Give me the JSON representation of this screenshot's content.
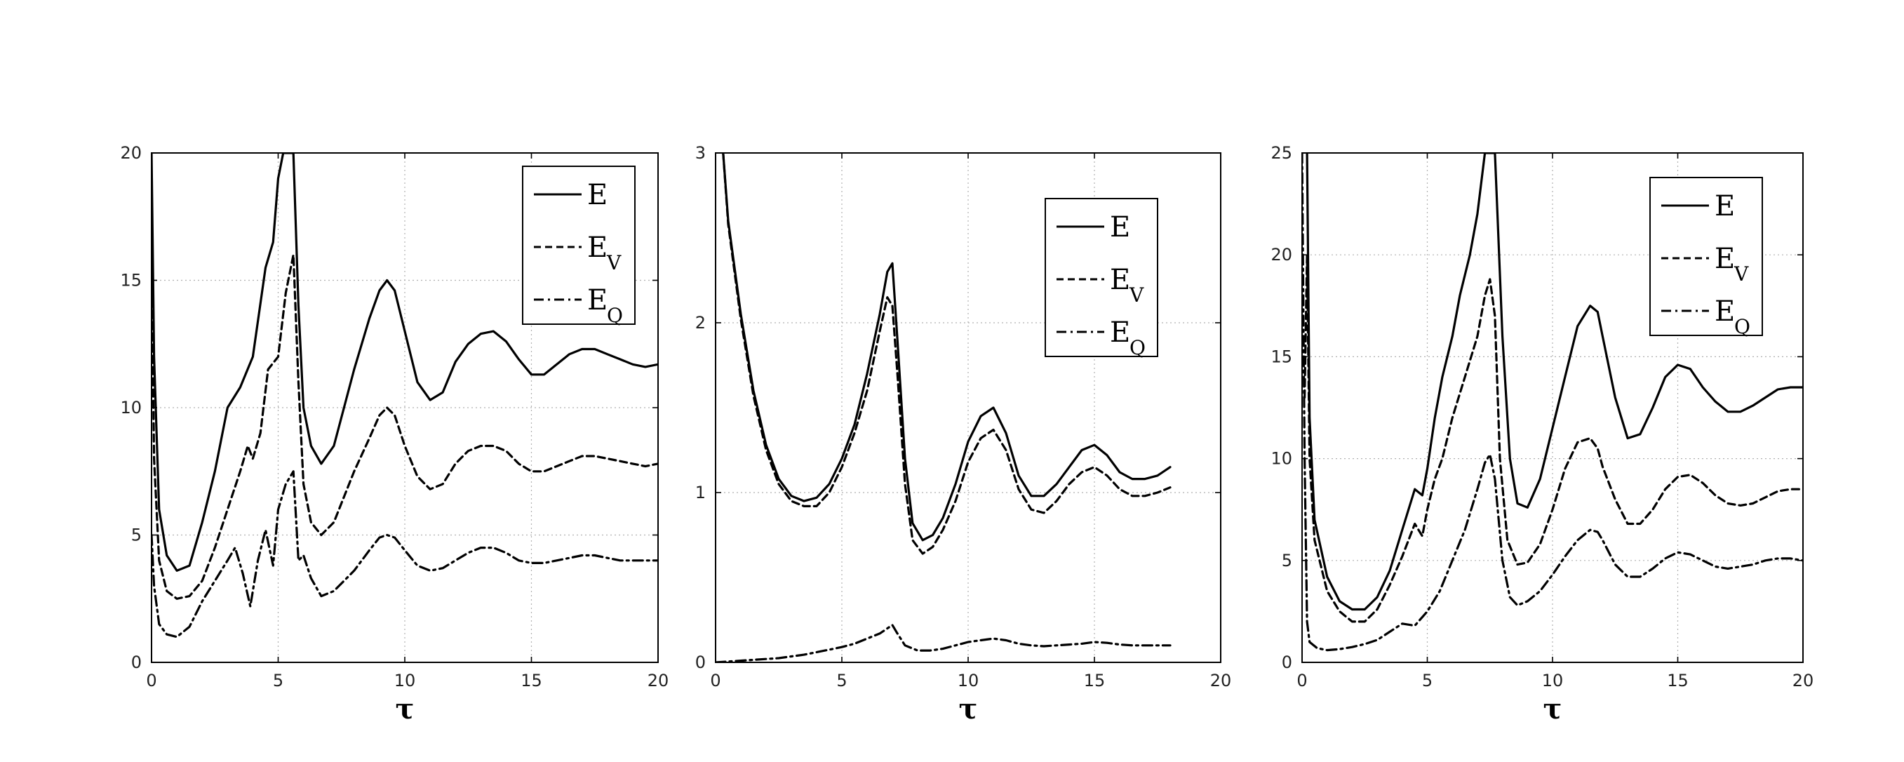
{
  "chart_data": [
    {
      "type": "line",
      "xlabel": "τ",
      "ylabel": "",
      "xlim": [
        0,
        20
      ],
      "ylim": [
        0,
        20
      ],
      "xticks": [
        "0",
        "5",
        "10",
        "15",
        "20"
      ],
      "yticks": [
        "0",
        "5",
        "10",
        "15",
        "20"
      ],
      "grid": true,
      "legend_position": "top-right",
      "series": [
        {
          "name": "E",
          "legend_main": "E",
          "legend_sub": "",
          "dash": "solid",
          "x": [
            0,
            0.1,
            0.3,
            0.6,
            1,
            1.5,
            2,
            2.5,
            3,
            3.5,
            4,
            4.5,
            4.8,
            5,
            5.2,
            5.4,
            5.6,
            5.8,
            6,
            6.3,
            6.7,
            7.2,
            8,
            8.6,
            9,
            9.3,
            9.6,
            10,
            10.5,
            11,
            11.5,
            12,
            12.5,
            13,
            13.5,
            14,
            14.5,
            15,
            15.5,
            16,
            16.5,
            17,
            17.5,
            18,
            18.5,
            19,
            19.5,
            20
          ],
          "y": [
            20,
            12,
            6,
            4.2,
            3.6,
            3.8,
            5.5,
            7.5,
            10,
            10.8,
            12,
            15.5,
            16.5,
            19,
            20,
            20,
            20,
            14,
            10,
            8.5,
            7.8,
            8.5,
            11.5,
            13.5,
            14.6,
            15,
            14.6,
            13,
            11,
            10.3,
            10.6,
            11.8,
            12.5,
            12.9,
            13,
            12.6,
            11.9,
            11.3,
            11.3,
            11.7,
            12.1,
            12.3,
            12.3,
            12.1,
            11.9,
            11.7,
            11.6,
            11.7
          ]
        },
        {
          "name": "E_V",
          "legend_main": "E",
          "legend_sub": "V",
          "dash": "dashed",
          "x": [
            0,
            0.1,
            0.3,
            0.6,
            1,
            1.5,
            2,
            2.5,
            3,
            3.5,
            3.8,
            4,
            4.3,
            4.6,
            5,
            5.3,
            5.6,
            5.8,
            6,
            6.3,
            6.7,
            7.2,
            8,
            8.6,
            9,
            9.3,
            9.6,
            10,
            10.5,
            11,
            11.5,
            12,
            12.5,
            13,
            13.5,
            14,
            14.5,
            15,
            15.5,
            16,
            16.5,
            17,
            17.5,
            18,
            18.5,
            19,
            19.5,
            20
          ],
          "y": [
            16,
            8,
            4,
            2.8,
            2.5,
            2.6,
            3.2,
            4.5,
            6,
            7.5,
            8.5,
            8,
            9,
            11.5,
            12,
            14.5,
            16,
            11,
            7,
            5.5,
            5,
            5.5,
            7.5,
            8.8,
            9.7,
            10,
            9.7,
            8.5,
            7.3,
            6.8,
            7,
            7.8,
            8.3,
            8.5,
            8.5,
            8.3,
            7.8,
            7.5,
            7.5,
            7.7,
            7.9,
            8.1,
            8.1,
            8,
            7.9,
            7.8,
            7.7,
            7.8
          ]
        },
        {
          "name": "E_Q",
          "legend_main": "E",
          "legend_sub": "Q",
          "dash": "dashdot",
          "x": [
            0,
            0.1,
            0.3,
            0.6,
            1,
            1.5,
            2,
            2.5,
            3,
            3.3,
            3.6,
            3.9,
            4.2,
            4.5,
            4.8,
            5,
            5.3,
            5.6,
            5.8,
            6,
            6.3,
            6.7,
            7.2,
            8,
            8.6,
            9,
            9.3,
            9.6,
            10,
            10.5,
            11,
            11.5,
            12,
            12.5,
            13,
            13.5,
            14,
            14.5,
            15,
            15.5,
            16,
            16.5,
            17,
            17.5,
            18,
            18.5,
            19,
            19.5,
            20
          ],
          "y": [
            5,
            3,
            1.5,
            1.1,
            1,
            1.4,
            2.4,
            3.2,
            4,
            4.5,
            3.5,
            2.2,
            4,
            5.2,
            3.8,
            6,
            7,
            7.5,
            4,
            4.2,
            3.3,
            2.6,
            2.8,
            3.6,
            4.4,
            4.9,
            5,
            4.9,
            4.4,
            3.8,
            3.6,
            3.7,
            4,
            4.3,
            4.5,
            4.5,
            4.3,
            4,
            3.9,
            3.9,
            4,
            4.1,
            4.2,
            4.2,
            4.1,
            4,
            4,
            4,
            4
          ]
        }
      ]
    },
    {
      "type": "line",
      "xlabel": "τ",
      "ylabel": "",
      "xlim": [
        0,
        20
      ],
      "ylim": [
        0,
        3
      ],
      "xticks": [
        "0",
        "5",
        "10",
        "15",
        "20"
      ],
      "yticks": [
        "0",
        "1",
        "2",
        "3"
      ],
      "grid": true,
      "legend_position": "top-right",
      "series": [
        {
          "name": "E",
          "legend_main": "E",
          "legend_sub": "",
          "dash": "solid",
          "x": [
            0.3,
            0.5,
            1,
            1.5,
            2,
            2.5,
            3,
            3.5,
            4,
            4.5,
            5,
            5.5,
            6,
            6.5,
            6.8,
            7,
            7.2,
            7.5,
            7.8,
            8.2,
            8.6,
            9,
            9.5,
            10,
            10.5,
            11,
            11.5,
            12,
            12.5,
            13,
            13.5,
            14,
            14.5,
            15,
            15.5,
            16,
            16.5,
            17,
            17.5,
            18
          ],
          "y": [
            3,
            2.6,
            2.05,
            1.6,
            1.28,
            1.08,
            0.98,
            0.95,
            0.97,
            1.05,
            1.2,
            1.4,
            1.7,
            2.05,
            2.3,
            2.35,
            1.9,
            1.2,
            0.82,
            0.72,
            0.75,
            0.85,
            1.05,
            1.3,
            1.45,
            1.5,
            1.35,
            1.1,
            0.98,
            0.98,
            1.05,
            1.15,
            1.25,
            1.28,
            1.22,
            1.12,
            1.08,
            1.08,
            1.1,
            1.15
          ]
        },
        {
          "name": "E_V",
          "legend_main": "E",
          "legend_sub": "V",
          "dash": "dashed",
          "x": [
            0.3,
            0.5,
            1,
            1.5,
            2,
            2.5,
            3,
            3.5,
            4,
            4.5,
            5,
            5.5,
            6,
            6.5,
            6.8,
            7,
            7.2,
            7.5,
            7.8,
            8.2,
            8.6,
            9,
            9.5,
            10,
            10.5,
            11,
            11.5,
            12,
            12.5,
            13,
            13.5,
            14,
            14.5,
            15,
            15.5,
            16,
            16.5,
            17,
            17.5,
            18
          ],
          "y": [
            3,
            2.58,
            2.02,
            1.57,
            1.25,
            1.05,
            0.95,
            0.92,
            0.92,
            1,
            1.15,
            1.35,
            1.6,
            1.95,
            2.15,
            2.1,
            1.7,
            1.05,
            0.72,
            0.64,
            0.68,
            0.78,
            0.95,
            1.18,
            1.32,
            1.37,
            1.25,
            1.02,
            0.9,
            0.88,
            0.95,
            1.05,
            1.12,
            1.15,
            1.1,
            1.02,
            0.98,
            0.98,
            1,
            1.03
          ]
        },
        {
          "name": "E_Q",
          "legend_main": "E",
          "legend_sub": "Q",
          "dash": "dashdot",
          "x": [
            0,
            0.5,
            1,
            1.5,
            2,
            2.5,
            3,
            3.5,
            4,
            4.5,
            5,
            5.5,
            6,
            6.5,
            6.8,
            7,
            7.2,
            7.5,
            8,
            8.5,
            9,
            9.5,
            10,
            10.5,
            11,
            11.5,
            12,
            12.5,
            13,
            13.5,
            14,
            14.5,
            15,
            15.5,
            16,
            16.5,
            17,
            17.5,
            18
          ],
          "y": [
            0,
            0.005,
            0.01,
            0.015,
            0.02,
            0.025,
            0.035,
            0.045,
            0.06,
            0.075,
            0.09,
            0.11,
            0.14,
            0.17,
            0.2,
            0.22,
            0.17,
            0.1,
            0.07,
            0.07,
            0.08,
            0.1,
            0.12,
            0.13,
            0.14,
            0.13,
            0.11,
            0.1,
            0.095,
            0.1,
            0.105,
            0.11,
            0.12,
            0.115,
            0.105,
            0.1,
            0.1,
            0.1,
            0.1
          ]
        }
      ]
    },
    {
      "type": "line",
      "xlabel": "τ",
      "ylabel": "",
      "xlim": [
        0,
        20
      ],
      "ylim": [
        0,
        25
      ],
      "xticks": [
        "0",
        "5",
        "10",
        "15",
        "20"
      ],
      "yticks": [
        "0",
        "5",
        "10",
        "15",
        "20",
        "25"
      ],
      "grid": true,
      "legend_position": "top-right",
      "series": [
        {
          "name": "E",
          "legend_main": "E",
          "legend_sub": "",
          "dash": "solid",
          "x": [
            0.2,
            0.3,
            0.5,
            1,
            1.5,
            2,
            2.5,
            3,
            3.5,
            4,
            4.5,
            4.8,
            5,
            5.3,
            5.6,
            6,
            6.3,
            6.7,
            7,
            7.3,
            7.5,
            7.7,
            7.8,
            8,
            8.3,
            8.6,
            9,
            9.5,
            10,
            10.5,
            11,
            11.5,
            11.8,
            12,
            12.5,
            13,
            13.5,
            14,
            14.5,
            15,
            15.5,
            16,
            16.5,
            17,
            17.5,
            18,
            18.5,
            19,
            19.5,
            20
          ],
          "y": [
            25,
            12,
            7,
            4.2,
            3,
            2.6,
            2.6,
            3.2,
            4.5,
            6.5,
            8.5,
            8.2,
            9.5,
            12,
            14,
            16,
            18,
            20,
            22,
            25,
            25,
            25,
            22,
            16,
            10,
            7.8,
            7.6,
            9,
            11.5,
            14,
            16.5,
            17.5,
            17.2,
            16,
            13,
            11,
            11.2,
            12.5,
            14,
            14.6,
            14.4,
            13.5,
            12.8,
            12.3,
            12.3,
            12.6,
            13,
            13.4,
            13.5,
            13.5
          ]
        },
        {
          "name": "E_V",
          "legend_main": "E",
          "legend_sub": "V",
          "dash": "dashed",
          "x": [
            0.1,
            0.2,
            0.3,
            0.5,
            1,
            1.5,
            2,
            2.5,
            3,
            3.5,
            4,
            4.5,
            4.8,
            5,
            5.3,
            5.6,
            6,
            6.5,
            7,
            7.3,
            7.5,
            7.7,
            7.9,
            8.2,
            8.6,
            9,
            9.5,
            10,
            10.5,
            11,
            11.5,
            11.8,
            12,
            12.5,
            13,
            13.5,
            14,
            14.5,
            15,
            15.5,
            16,
            16.5,
            17,
            17.5,
            18,
            18.5,
            19,
            19.5,
            20
          ],
          "y": [
            13,
            20,
            10,
            6,
            3.5,
            2.5,
            2,
            2,
            2.6,
            3.8,
            5.2,
            6.8,
            6.2,
            7.5,
            9,
            10,
            12,
            14,
            16,
            18,
            18.8,
            17,
            10,
            6,
            4.8,
            4.9,
            5.8,
            7.5,
            9.5,
            10.8,
            11,
            10.5,
            9.6,
            8,
            6.8,
            6.8,
            7.5,
            8.5,
            9.1,
            9.2,
            8.8,
            8.2,
            7.8,
            7.7,
            7.8,
            8.1,
            8.4,
            8.5,
            8.5
          ]
        },
        {
          "name": "E_Q",
          "legend_main": "E",
          "legend_sub": "Q",
          "dash": "dashdot",
          "x": [
            0,
            0.1,
            0.2,
            0.3,
            0.6,
            1,
            1.5,
            2,
            2.5,
            3,
            3.5,
            4,
            4.5,
            5,
            5.5,
            6,
            6.5,
            7,
            7.3,
            7.5,
            7.7,
            8,
            8.3,
            8.6,
            9,
            9.5,
            10,
            10.5,
            11,
            11.5,
            11.8,
            12,
            12.5,
            13,
            13.5,
            14,
            14.5,
            15,
            15.5,
            16,
            16.5,
            17,
            17.5,
            18,
            18.5,
            19,
            19.5,
            20
          ],
          "y": [
            25,
            10,
            2,
            1,
            0.7,
            0.6,
            0.65,
            0.75,
            0.9,
            1.1,
            1.5,
            1.9,
            1.8,
            2.5,
            3.5,
            5,
            6.5,
            8.5,
            9.8,
            10.2,
            9,
            5,
            3.2,
            2.8,
            3,
            3.5,
            4.3,
            5.2,
            6,
            6.5,
            6.4,
            6,
            4.8,
            4.2,
            4.2,
            4.6,
            5.1,
            5.4,
            5.3,
            5,
            4.7,
            4.6,
            4.7,
            4.8,
            5,
            5.1,
            5.1,
            5
          ]
        }
      ]
    }
  ]
}
